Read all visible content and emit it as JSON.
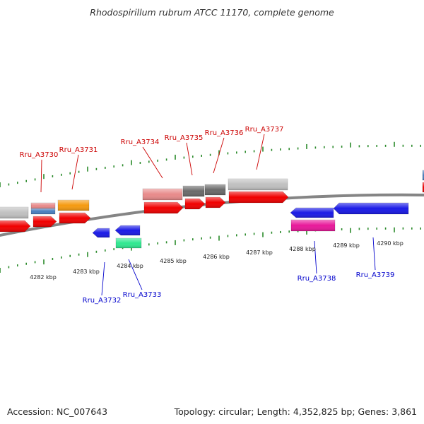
{
  "title": "Rhodospirillum rubrum ATCC 11170, complete genome",
  "footer": {
    "accession": "Accession: NC_007643",
    "topology": "Topology: circular; Length: 4,352,825 bp; Genes: 3,861"
  },
  "colors": {
    "backbone": "#858585",
    "tick": "#2a8a2a",
    "label_top": "#cc0000",
    "label_bottom": "#0000cc",
    "red_gene": "#f00000",
    "blue_gene": "#1a1ae6",
    "light_red": "#e88a8a",
    "grey": "#c0c0c0",
    "dark_grey": "#6a6a6a",
    "orange": "#f59a10",
    "steel": "#4a7fbf",
    "green": "#30e890",
    "magenta": "#e8189a"
  },
  "scale_labels": [
    "4282 kbp",
    "4283 kbp",
    "4284 kbp",
    "4285 kbp",
    "4286 kbp",
    "4287 kbp",
    "4288 kbp",
    "4289 kbp",
    "4290 kbp"
  ],
  "gene_labels_top": [
    "Rru_A3730",
    "Rru_A3731",
    "Rru_A3734",
    "Rru_A3735",
    "Rru_A3736",
    "Rru_A3737"
  ],
  "gene_labels_bottom": [
    "Rru_A3732",
    "Rru_A3733",
    "Rru_A3738",
    "Rru_A3739"
  ]
}
